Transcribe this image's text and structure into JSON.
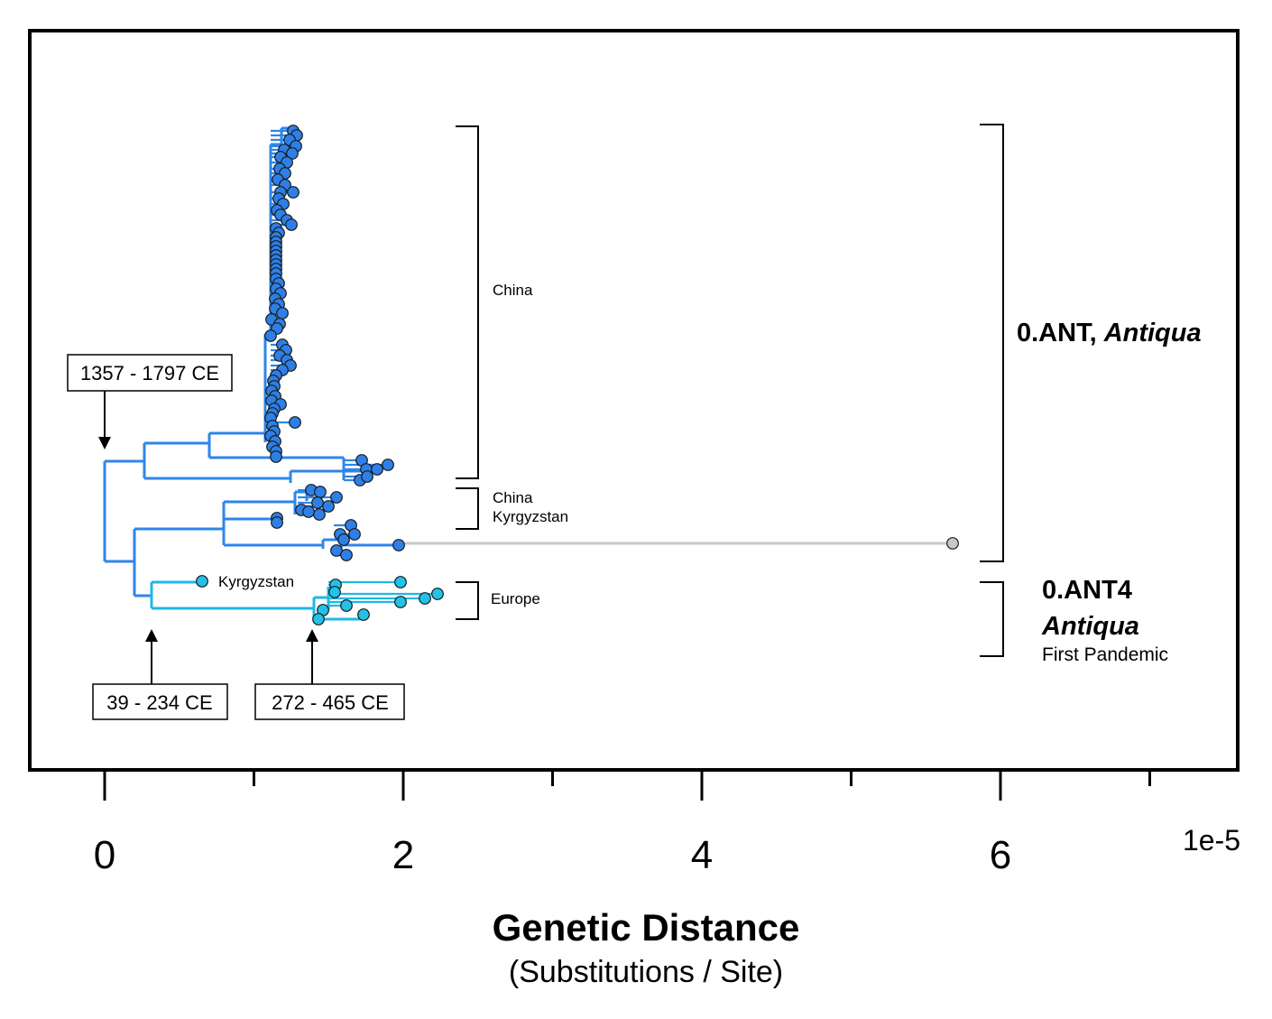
{
  "axis": {
    "ticks": [
      "0",
      "2",
      "4",
      "6"
    ],
    "tick_values": [
      0,
      2,
      4,
      6
    ],
    "minor_tick_values": [
      1,
      3,
      5,
      7
    ],
    "range": [
      -0.5,
      7.6
    ],
    "exponent": "1e-5",
    "title": "Genetic Distance",
    "subtitle": "(Substitutions / Site)"
  },
  "annotations": {
    "date_top": "1357 - 1797 CE",
    "date_left": "39 - 234 CE",
    "date_mid": "272 - 465 CE"
  },
  "labels": {
    "china_main": "China",
    "china_small": "China",
    "kyrgyzstan_small": "Kyrgyzstan",
    "kyrgyzstan_leaf": "Kyrgyzstan",
    "europe": "Europe"
  },
  "clades": {
    "ant_prefix": "0.ANT, ",
    "ant_italic": "Antiqua",
    "ant4_name": "0.ANT4",
    "ant4_italic": "Antiqua",
    "ant4_sub": "First Pandemic"
  },
  "colors": {
    "main_branch": "#2E86E8",
    "node_fill": "#2E7FE6",
    "ant4_branch": "#1FB8E6",
    "ant4_node": "#22C1E8",
    "outlier_branch": "#C8C8C8",
    "outlier_node": "#C8C8C8"
  }
}
